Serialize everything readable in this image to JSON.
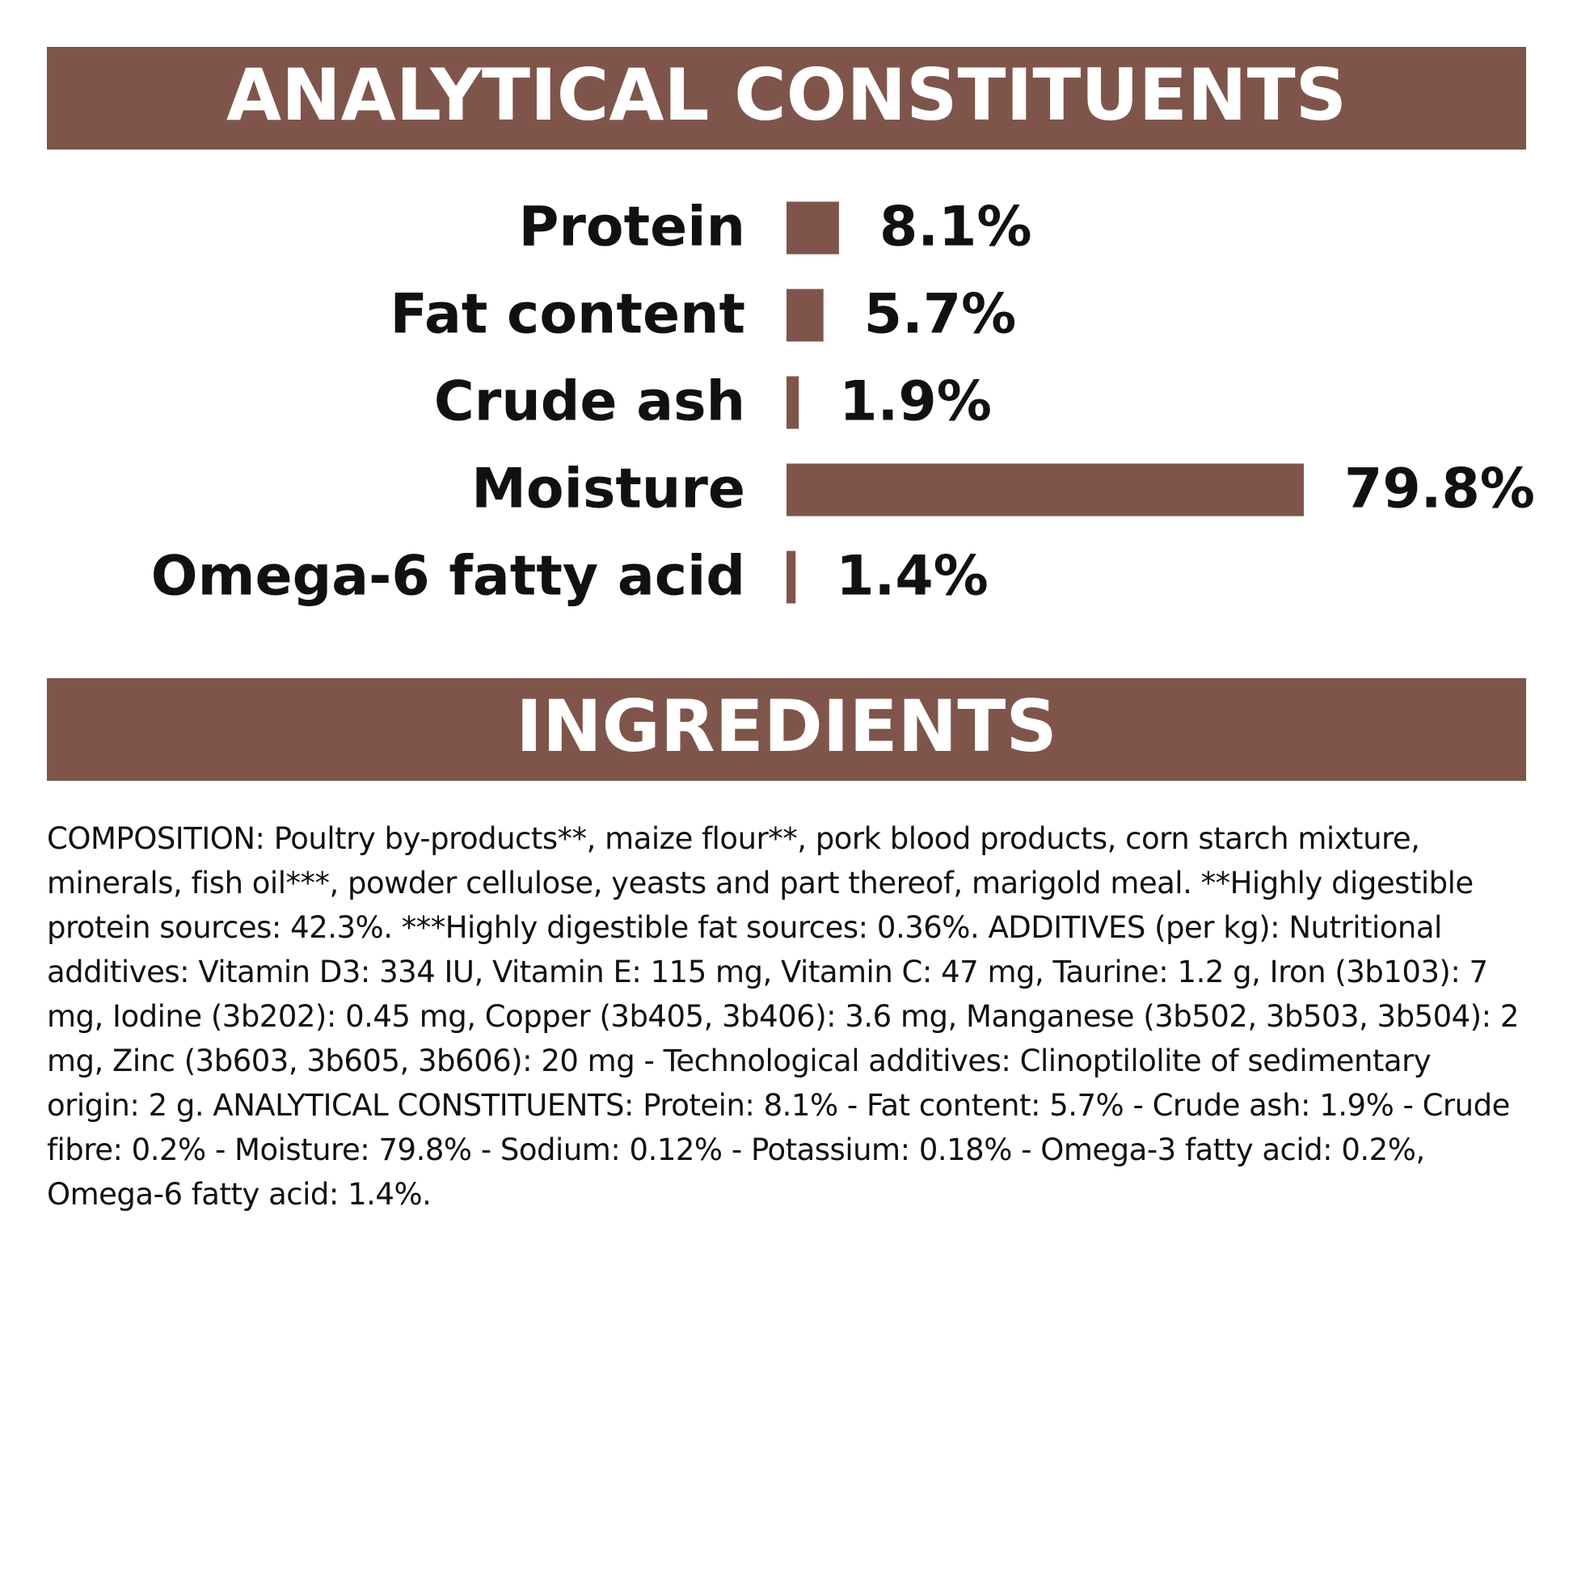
{
  "chart_data": {
    "type": "bar",
    "title": "ANALYTICAL CONSTITUENTS",
    "categories": [
      "Protein",
      "Fat content",
      "Crude ash",
      "Moisture",
      "Omega-6 fatty acid"
    ],
    "values": [
      8.1,
      5.7,
      1.9,
      79.8,
      1.4
    ],
    "value_labels": [
      "8.1%",
      "5.7%",
      "1.9%",
      "79.8%",
      "1.4%"
    ],
    "color": "#7f554b"
  },
  "ingredients": {
    "title": "INGREDIENTS",
    "text": "COMPOSITION: Poultry by-products**, maize flour**, pork blood products, corn starch mixture, minerals, fish oil***, powder cellulose, yeasts and part thereof, marigold meal. **Highly digestible protein sources: 42.3%. ***Highly digestible fat sources: 0.36%. ADDITIVES (per kg): Nutritional additives: Vitamin D3: 334 IU, Vitamin E: 115 mg, Vitamin C: 47 mg, Taurine: 1.2 g, Iron (3b103): 7 mg, Iodine (3b202): 0.45 mg, Copper (3b405, 3b406): 3.6 mg, Manganese (3b502, 3b503, 3b504): 2 mg, Zinc (3b603, 3b605, 3b606): 20 mg - Technological additives: Clinoptilolite of sedimentary origin: 2 g. ANALYTICAL CONSTITUENTS: Protein: 8.1% - Fat content: 5.7% - Crude ash: 1.9% - Crude fibre: 0.2% - Moisture: 79.8% - Sodium: 0.12% - Potassium: 0.18% - Omega-3 fatty acid: 0.2%, Omega-6 fatty acid: 1.4%."
  }
}
